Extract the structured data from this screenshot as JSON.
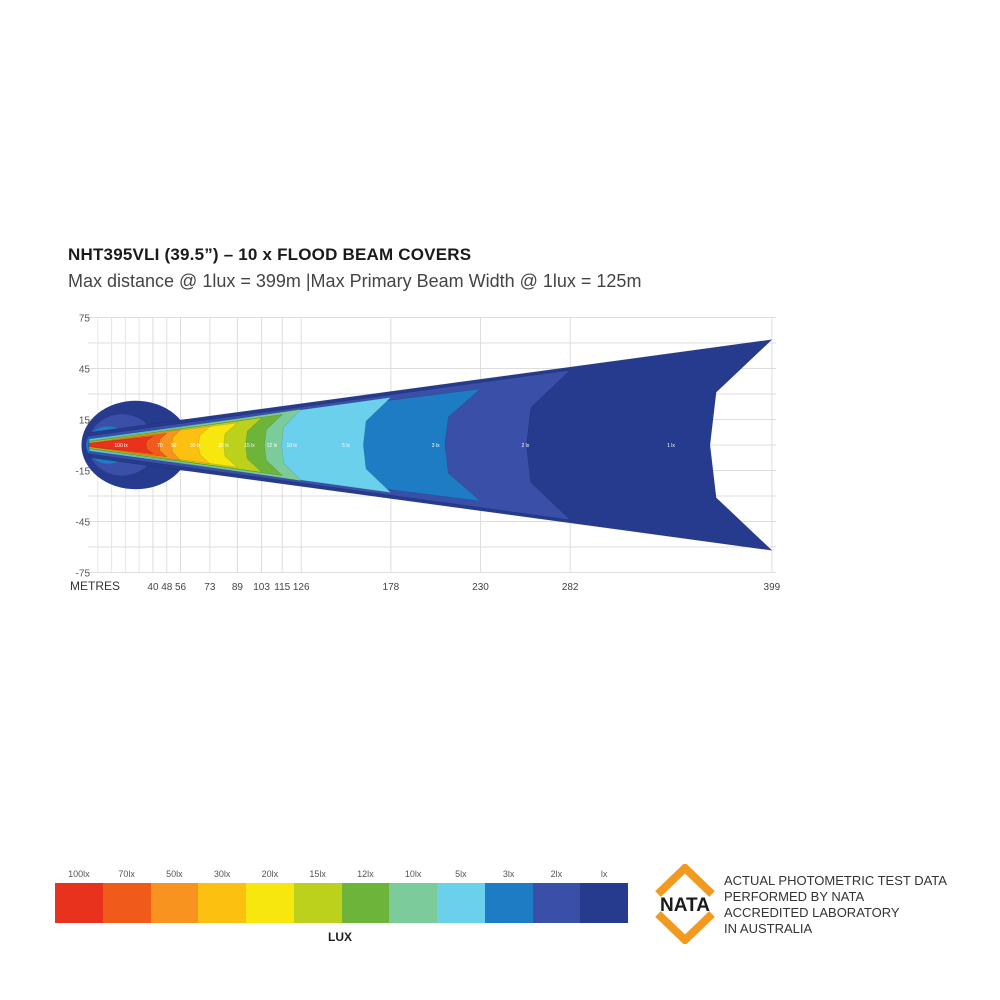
{
  "header": {
    "title": "NHT395VLI (39.5”) – 10 x FLOOD BEAM COVERS",
    "subtitle": "Max distance @ 1lux = 399m  |Max Primary  Beam Width @ 1lux = 125m"
  },
  "chart_data": {
    "type": "heatmap",
    "title": "NHT395VLI (39.5”) – 10 x FLOOD BEAM COVERS",
    "xlabel": "METRES",
    "x_ticks": [
      40,
      48,
      56,
      73,
      89,
      103,
      115,
      126,
      178,
      230,
      282,
      399
    ],
    "y_ticks": [
      75,
      45,
      15,
      -15,
      -45,
      -75
    ],
    "xlim": [
      0,
      399
    ],
    "ylim": [
      -75,
      75
    ],
    "grid": true,
    "zones": [
      {
        "label": "100 lx",
        "lux": 100,
        "reach": 40,
        "half_width": 5
      },
      {
        "label": "70",
        "lux": 70,
        "reach": 48,
        "half_width": 7
      },
      {
        "label": "50",
        "lux": 50,
        "reach": 56,
        "half_width": 9
      },
      {
        "label": "30 lx",
        "lux": 30,
        "reach": 73,
        "half_width": 11
      },
      {
        "label": "20 lx",
        "lux": 20,
        "reach": 89,
        "half_width": 13
      },
      {
        "label": "15 lx",
        "lux": 15,
        "reach": 103,
        "half_width": 16
      },
      {
        "label": "12 lx",
        "lux": 12,
        "reach": 115,
        "half_width": 18
      },
      {
        "label": "10 lx",
        "lux": 10,
        "reach": 126,
        "half_width": 21
      },
      {
        "label": "5 lx",
        "lux": 5,
        "reach": 178,
        "half_width": 28
      },
      {
        "label": "3 lx",
        "lux": 3,
        "reach": 230,
        "half_width": 33
      },
      {
        "label": "2 lx",
        "lux": 2,
        "reach": 282,
        "half_width": 44
      },
      {
        "label": "1 lx",
        "lux": 1,
        "reach": 399,
        "half_width": 62
      }
    ]
  },
  "legend": {
    "title": "LUX",
    "items": [
      {
        "label": "100lx",
        "color": "#e8321e"
      },
      {
        "label": "70lx",
        "color": "#f05a1a"
      },
      {
        "label": "50lx",
        "color": "#f7931e"
      },
      {
        "label": "30lx",
        "color": "#fcc010"
      },
      {
        "label": "20lx",
        "color": "#f8e60f"
      },
      {
        "label": "15lx",
        "color": "#bcd11c"
      },
      {
        "label": "12lx",
        "color": "#6db43a"
      },
      {
        "label": "10lx",
        "color": "#7ccb9a"
      },
      {
        "label": "5lx",
        "color": "#6bd0ec"
      },
      {
        "label": "3lx",
        "color": "#1e7cc4"
      },
      {
        "label": "2lx",
        "color": "#3a4fa8"
      },
      {
        "label": "lx",
        "color": "#263a8e"
      }
    ]
  },
  "nata": {
    "logo_text": "NATA",
    "logo_color": "#f29a1f",
    "lines": [
      "ACTUAL PHOTOMETRIC TEST DATA",
      "PERFORMED BY NATA",
      "ACCREDITED LABORATORY",
      "IN AUSTRALIA"
    ]
  }
}
